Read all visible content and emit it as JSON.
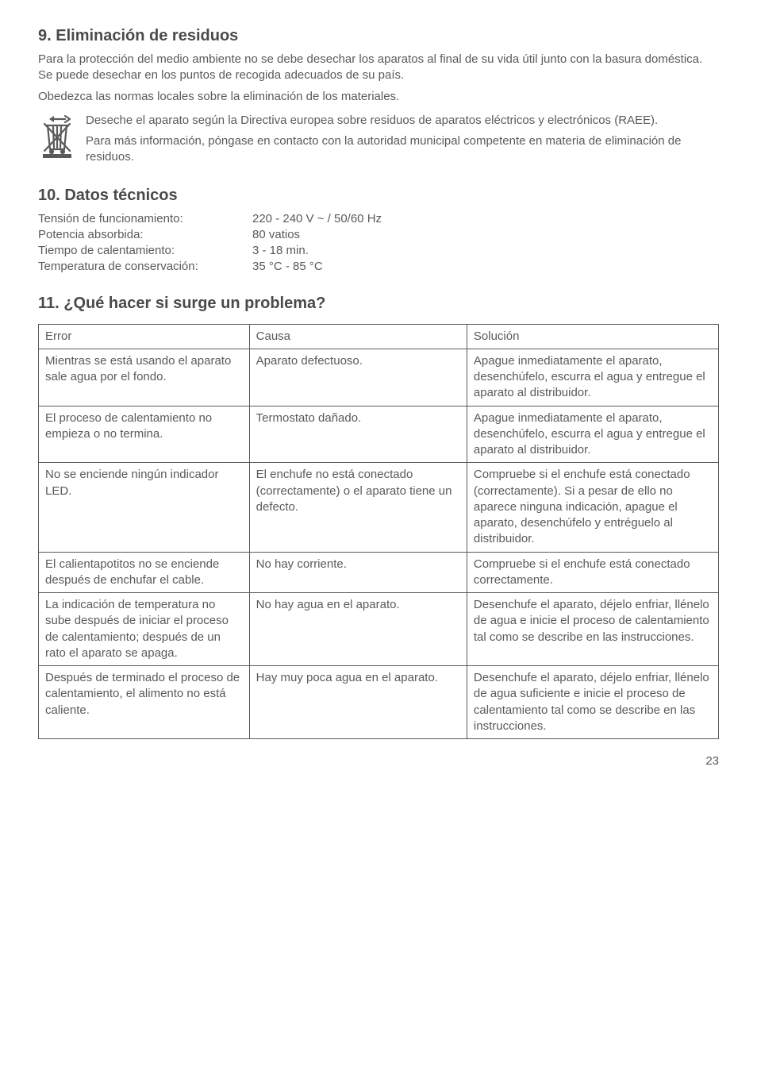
{
  "colors": {
    "text": "#5a5a5a",
    "heading": "#4a4a4a",
    "border": "#5a5a5a",
    "background": "#ffffff"
  },
  "typography": {
    "body_fontsize": 15,
    "heading_fontsize": 20,
    "font_family": "Arial, Helvetica, sans-serif"
  },
  "section9": {
    "heading": "9. Eliminación de residuos",
    "p1": "Para la protección del medio ambiente no se debe desechar los aparatos al final de su vida útil junto con la basura doméstica. Se puede desechar en los puntos de recogida adecuados de su país.",
    "p2": "Obedezca las normas locales sobre la eliminación de los materiales.",
    "iconText1": "Deseche el aparato según la Directiva europea sobre residuos de aparatos eléctricos y electrónicos (RAEE).",
    "iconText2": "Para más información, póngase en contacto con la autoridad municipal competente en materia de eliminación de residuos."
  },
  "section10": {
    "heading": "10. Datos técnicos",
    "specs": [
      {
        "label": "Tensión de funcionamiento:",
        "value": "220 - 240 V ~ / 50/60 Hz"
      },
      {
        "label": "Potencia absorbida:",
        "value": "80 vatios"
      },
      {
        "label": "Tiempo de calentamiento:",
        "value": "3 - 18 min."
      },
      {
        "label": "Temperatura de conservación:",
        "value": "35 °C - 85 °C"
      }
    ]
  },
  "section11": {
    "heading": "11. ¿Qué hacer si surge un problema?",
    "table": {
      "type": "table",
      "column_widths": [
        "31%",
        "32%",
        "37%"
      ],
      "columns": [
        "Error",
        "Causa",
        "Solución"
      ],
      "rows": [
        [
          "Mientras se está usando el aparato sale agua por el fondo.",
          "Aparato defectuoso.",
          "Apague inmediatamente el aparato, desenchúfelo, escurra el agua y entregue el aparato al distribuidor."
        ],
        [
          "El proceso de calentamiento no empieza o no termina.",
          "Termostato dañado.",
          "Apague inmediatamente el aparato, desenchúfelo, escurra el agua y entregue el aparato al distribuidor."
        ],
        [
          "No se enciende ningún indicador LED.",
          "El enchufe no está conectado (correctamente) o el aparato tiene un defecto.",
          "Compruebe si el enchufe está conectado (correctamente). Si a pesar de ello no aparece ninguna indicación, apague el aparato, desenchúfelo y entré­guelo al distribuidor."
        ],
        [
          "El calientapotitos no se enciende después de enchufar el cable.",
          "No hay corriente.",
          "Compruebe si el enchufe está conectado correctamente."
        ],
        [
          "La indicación de tempera­tura no sube después de iniciar el proceso de calen­tamiento; después de un rato el aparato se apaga.",
          "No hay agua en el aparato.",
          "Desenchufe el aparato, déjelo enfriar, llénelo de agua e inicie el proceso de calentamiento tal como se describe en las instrucciones."
        ],
        [
          "Después de terminado el proceso de calentamiento, el alimento no está caliente.",
          "Hay muy poca agua en el aparato.",
          "Desenchufe el aparato, déjelo enfriar, llénelo de agua suficiente e inicie el proceso de calentamiento tal como se describe en las instrucciones."
        ]
      ]
    }
  },
  "pageNumber": "23"
}
